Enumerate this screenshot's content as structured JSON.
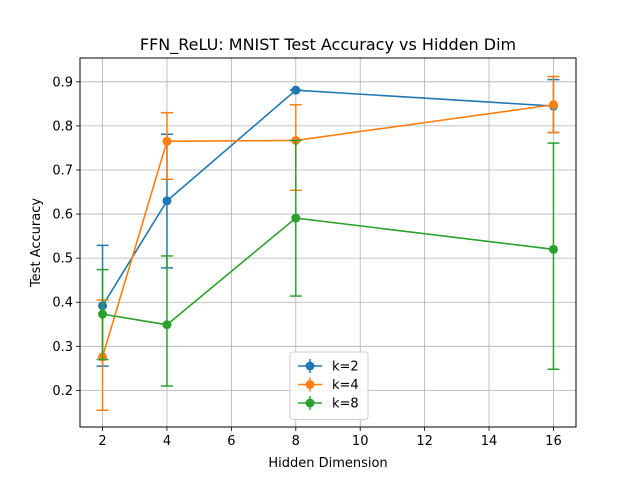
{
  "chart_data": {
    "type": "line",
    "title": "FFN_ReLU: MNIST Test Accuracy vs Hidden Dim",
    "xlabel": "Hidden Dimension",
    "ylabel": "Test Accuracy",
    "xlim": [
      1.3,
      16.7
    ],
    "ylim": [
      0.117,
      0.954
    ],
    "xticks": [
      2,
      4,
      6,
      8,
      10,
      12,
      14,
      16
    ],
    "yticks": [
      0.2,
      0.3,
      0.4,
      0.5,
      0.6,
      0.7,
      0.8,
      0.9
    ],
    "grid": true,
    "legend_position": "bottom-center",
    "x": [
      2,
      4,
      8,
      16
    ],
    "series": [
      {
        "name": "k=2",
        "color": "#1f77b4",
        "values": [
          0.392,
          0.63,
          0.881,
          0.845
        ],
        "err_low": [
          0.255,
          0.478,
          0.881,
          0.785
        ],
        "err_high": [
          0.529,
          0.781,
          0.881,
          0.905
        ]
      },
      {
        "name": "k=4",
        "color": "#ff7f0e",
        "values": [
          0.276,
          0.765,
          0.767,
          0.848
        ],
        "err_low": [
          0.155,
          0.679,
          0.654,
          0.785
        ],
        "err_high": [
          0.405,
          0.83,
          0.848,
          0.912
        ]
      },
      {
        "name": "k=8",
        "color": "#2ca02c",
        "values": [
          0.373,
          0.349,
          0.591,
          0.52
        ],
        "err_low": [
          0.27,
          0.21,
          0.414,
          0.248
        ],
        "err_high": [
          0.474,
          0.505,
          0.767,
          0.761
        ]
      }
    ]
  }
}
